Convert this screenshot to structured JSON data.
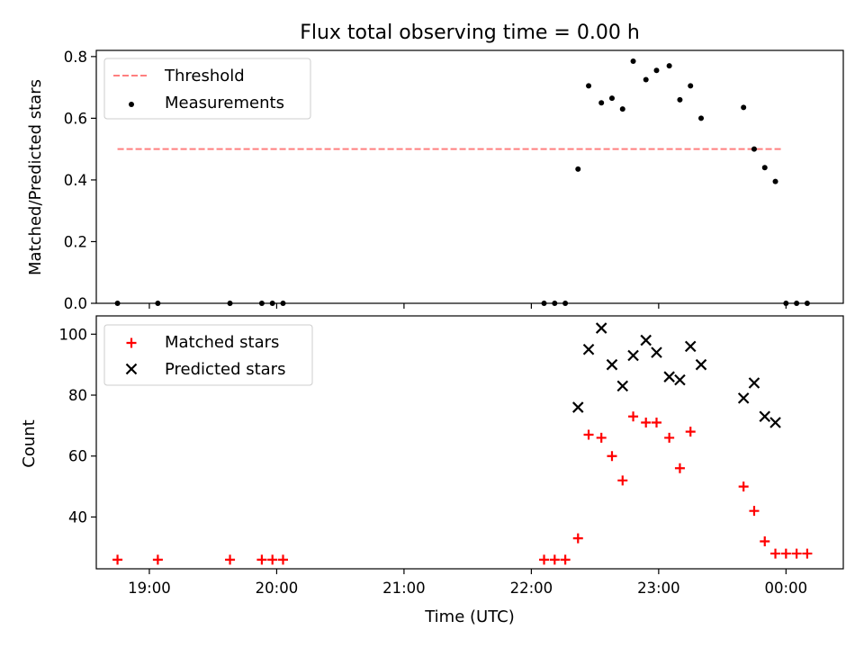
{
  "chart_data": [
    {
      "type": "scatter",
      "title": "Flux total observing time = 0.00 h",
      "xlabel": "",
      "ylabel": "Matched/Predicted stars",
      "xlim": [
        "18:35",
        "00:27"
      ],
      "ylim": [
        0,
        0.82
      ],
      "yticks": [
        0.0,
        0.2,
        0.4,
        0.6,
        0.8
      ],
      "ytick_labels": [
        "0.0",
        "0.2",
        "0.4",
        "0.6",
        "0.8"
      ],
      "xticks": [
        "19:00",
        "20:00",
        "21:00",
        "22:00",
        "23:00",
        "00:00"
      ],
      "legend_position": "upper-left",
      "colors": {
        "threshold": "#ff7f7f",
        "measurements": "#000000"
      },
      "series": [
        {
          "name": "Threshold",
          "style": "dashed-line",
          "x": [
            "18:45",
            "23:58"
          ],
          "y": [
            0.5,
            0.5
          ]
        },
        {
          "name": "Measurements",
          "style": "dot",
          "x": [
            "18:45",
            "19:04",
            "19:38",
            "19:53",
            "19:58",
            "20:03",
            "22:06",
            "22:11",
            "22:16",
            "22:22",
            "22:27",
            "22:33",
            "22:38",
            "22:43",
            "22:48",
            "22:54",
            "22:59",
            "23:05",
            "23:10",
            "23:15",
            "23:20",
            "23:40",
            "23:45",
            "23:50",
            "23:55",
            "00:00",
            "00:05",
            "00:10"
          ],
          "y": [
            0.0,
            0.0,
            0.0,
            0.0,
            0.0,
            0.0,
            0.0,
            0.0,
            0.0,
            0.435,
            0.705,
            0.65,
            0.665,
            0.63,
            0.785,
            0.725,
            0.755,
            0.77,
            0.66,
            0.705,
            0.6,
            0.635,
            0.5,
            0.44,
            0.395,
            0.0,
            0.0,
            0.0
          ]
        }
      ]
    },
    {
      "type": "scatter",
      "title": "",
      "xlabel": "Time (UTC)",
      "ylabel": "Count",
      "xlim": [
        "18:35",
        "00:27"
      ],
      "ylim": [
        23,
        106
      ],
      "yticks": [
        40,
        60,
        80,
        100
      ],
      "ytick_labels": [
        "40",
        "60",
        "80",
        "100"
      ],
      "xticks": [
        "19:00",
        "20:00",
        "21:00",
        "22:00",
        "23:00",
        "00:00"
      ],
      "xtick_labels": [
        "19:00",
        "20:00",
        "21:00",
        "22:00",
        "23:00",
        "00:00"
      ],
      "legend_position": "upper-left",
      "colors": {
        "matched": "#ff0000",
        "predicted": "#000000"
      },
      "series": [
        {
          "name": "Matched stars",
          "marker": "plus",
          "x": [
            "18:45",
            "19:04",
            "19:38",
            "19:53",
            "19:58",
            "20:03",
            "22:06",
            "22:11",
            "22:16",
            "22:22",
            "22:27",
            "22:33",
            "22:38",
            "22:43",
            "22:48",
            "22:54",
            "22:59",
            "23:05",
            "23:10",
            "23:15",
            "23:40",
            "23:45",
            "23:50",
            "23:55",
            "00:00",
            "00:05",
            "00:10"
          ],
          "y": [
            26,
            26,
            26,
            26,
            26,
            26,
            26,
            26,
            26,
            33,
            67,
            66,
            60,
            52,
            73,
            71,
            71,
            66,
            56,
            68,
            50,
            42,
            32,
            28,
            28,
            28,
            28
          ]
        },
        {
          "name": "Predicted stars",
          "marker": "x",
          "x": [
            "22:22",
            "22:27",
            "22:33",
            "22:38",
            "22:43",
            "22:48",
            "22:54",
            "22:59",
            "23:05",
            "23:10",
            "23:15",
            "23:20",
            "23:40",
            "23:45",
            "23:50",
            "23:55"
          ],
          "y": [
            76,
            95,
            102,
            90,
            83,
            93,
            98,
            94,
            86,
            85,
            96,
            90,
            79,
            84,
            73,
            71
          ]
        }
      ]
    }
  ]
}
